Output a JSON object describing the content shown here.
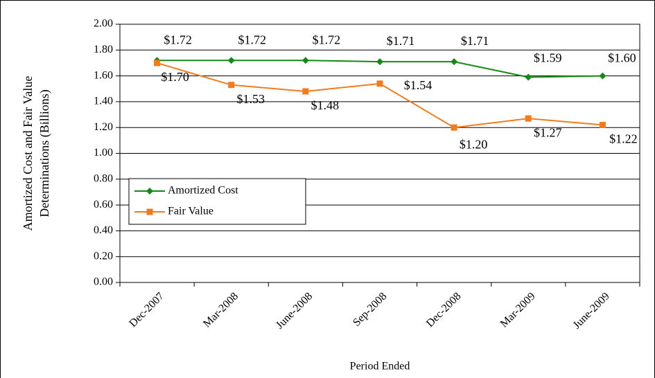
{
  "chart_data": {
    "type": "line",
    "xlabel": "Period Ended",
    "ylabel": [
      "Amortized Cost and Fair Value",
      "Determinations (Billions)"
    ],
    "categories": [
      "Dec-2007",
      "Mar-2008",
      "June-2008",
      "Sep-2008",
      "Dec-2008",
      "Mar-2009",
      "June-2009"
    ],
    "series": [
      {
        "name": "Amortized Cost",
        "color": "#138a13",
        "marker": "diamond",
        "values": [
          1.72,
          1.72,
          1.72,
          1.71,
          1.71,
          1.59,
          1.6
        ],
        "value_labels": [
          "$1.72",
          "$1.72",
          "$1.72",
          "$1.71",
          "$1.71",
          "$1.59",
          "$1.60"
        ]
      },
      {
        "name": "Fair Value",
        "color": "#f57a1a",
        "marker": "square",
        "values": [
          1.7,
          1.53,
          1.48,
          1.54,
          1.2,
          1.27,
          1.22
        ],
        "value_labels": [
          "$1.70",
          "$1.53",
          "$1.48",
          "$1.54",
          "$1.20",
          "$1.27",
          "$1.22"
        ]
      }
    ],
    "ylim": [
      0,
      2
    ],
    "yticks": [
      {
        "value": 0,
        "label": "0.00"
      },
      {
        "value": 0.2,
        "label": "0.20"
      },
      {
        "value": 0.4,
        "label": "0.40"
      },
      {
        "value": 0.6,
        "label": "0.60"
      },
      {
        "value": 0.8,
        "label": "0.80"
      },
      {
        "value": 1,
        "label": "1.00"
      },
      {
        "value": 1.2,
        "label": "1.20"
      },
      {
        "value": 1.4,
        "label": "1.40"
      },
      {
        "value": 1.6,
        "label": "1.60"
      },
      {
        "value": 1.8,
        "label": "1.80"
      },
      {
        "value": 2,
        "label": "2.00"
      }
    ],
    "grid": true,
    "legend": "lower left"
  }
}
